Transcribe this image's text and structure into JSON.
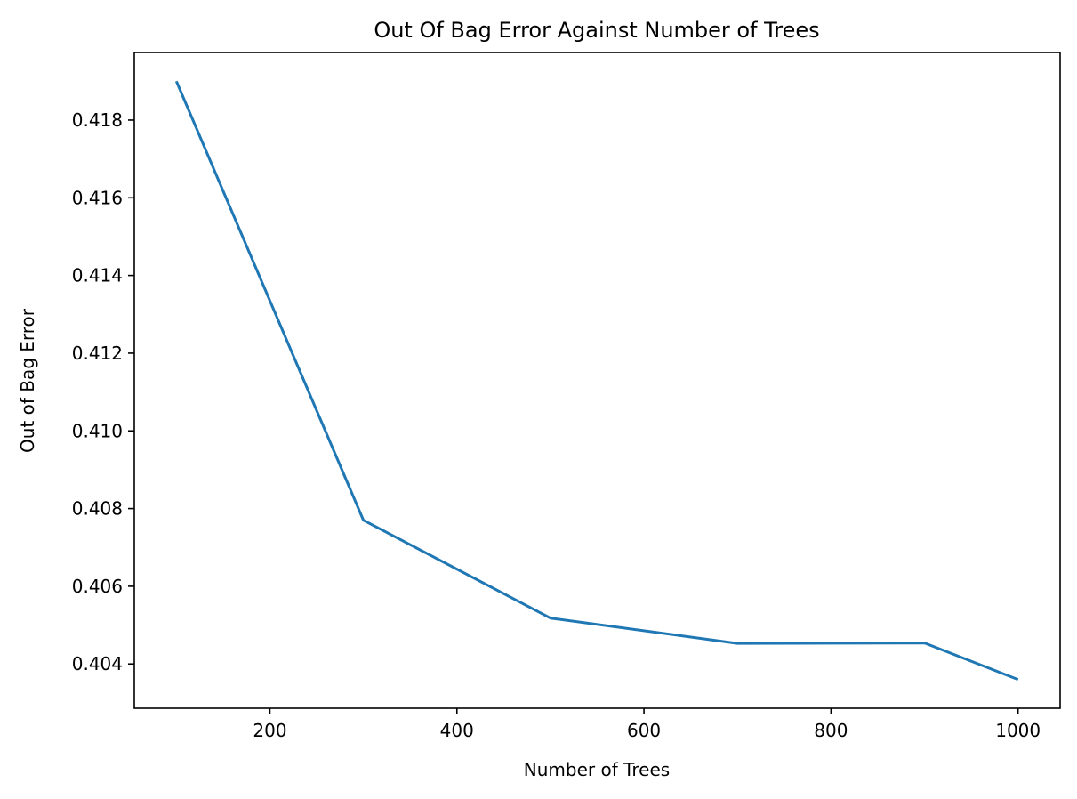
{
  "chart_data": {
    "type": "line",
    "title": "Out Of Bag Error Against Number of Trees",
    "xlabel": "Number of Trees",
    "ylabel": "Out of Bag Error",
    "xlim": [
      55,
      1045
    ],
    "ylim": [
      0.40286,
      0.41974
    ],
    "x_ticks": [
      200,
      400,
      600,
      800,
      1000
    ],
    "x_tick_labels": [
      "200",
      "400",
      "600",
      "800",
      "1000"
    ],
    "y_ticks": [
      0.404,
      0.406,
      0.408,
      0.41,
      0.412,
      0.414,
      0.416,
      0.418
    ],
    "y_tick_labels": [
      "0.404",
      "0.406",
      "0.408",
      "0.410",
      "0.412",
      "0.414",
      "0.416",
      "0.418"
    ],
    "grid": false,
    "series": [
      {
        "color": "#1f77b4",
        "x": [
          100,
          300,
          500,
          700,
          900,
          1000
        ],
        "y": [
          0.419,
          0.4077,
          0.40518,
          0.40453,
          0.40454,
          0.4036
        ]
      }
    ]
  }
}
